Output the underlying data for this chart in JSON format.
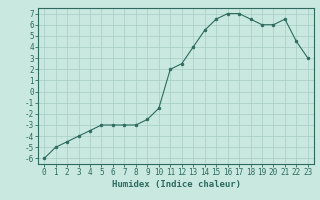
{
  "x": [
    0,
    1,
    2,
    3,
    4,
    5,
    6,
    7,
    8,
    9,
    10,
    11,
    12,
    13,
    14,
    15,
    16,
    17,
    18,
    19,
    20,
    21,
    22,
    23
  ],
  "y": [
    -6,
    -5,
    -4.5,
    -4,
    -3.5,
    -3,
    -3,
    -3,
    -3,
    -2.5,
    -1.5,
    2,
    2.5,
    4,
    5.5,
    6.5,
    7,
    7,
    6.5,
    6,
    6,
    6.5,
    4.5,
    3
  ],
  "line_color": "#2e6b5e",
  "marker_color": "#2e6b5e",
  "bg_color": "#c8e8e0",
  "grid_color": "#a8cec6",
  "xlabel": "Humidex (Indice chaleur)",
  "xlim": [
    -0.5,
    23.5
  ],
  "ylim": [
    -6.5,
    7.5
  ],
  "yticks": [
    -6,
    -5,
    -4,
    -3,
    -2,
    -1,
    0,
    1,
    2,
    3,
    4,
    5,
    6,
    7
  ],
  "xticks": [
    0,
    1,
    2,
    3,
    4,
    5,
    6,
    7,
    8,
    9,
    10,
    11,
    12,
    13,
    14,
    15,
    16,
    17,
    18,
    19,
    20,
    21,
    22,
    23
  ],
  "tick_fontsize": 5.5,
  "label_fontsize": 6.5
}
